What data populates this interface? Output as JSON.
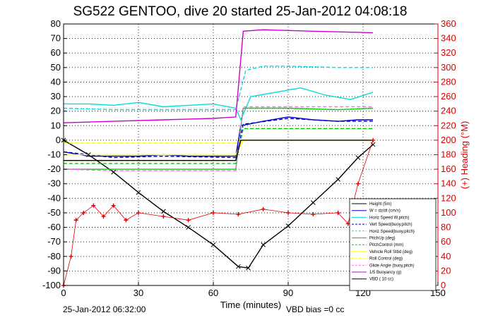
{
  "chart_data": {
    "type": "line",
    "title": "SG522 GENTOO, dive 20 started 25-Jan-2012 04:08:18",
    "xlabel": "Time (minutes)",
    "ylabel": "",
    "y2label": "(+) Heading (°M)",
    "xlim": [
      0,
      150
    ],
    "ylim": [
      -100,
      80
    ],
    "y2lim": [
      0,
      360
    ],
    "grid": true,
    "legend_position": "bottom-right",
    "x_ticks": [
      "0",
      "30",
      "60",
      "90",
      "120",
      "150"
    ],
    "y_ticks": [
      "80",
      "70",
      "60",
      "50",
      "40",
      "30",
      "20",
      "10",
      "0",
      "-10",
      "-20",
      "-30",
      "-40",
      "-50",
      "-60",
      "-70",
      "-80",
      "-90",
      "-100"
    ],
    "y2_ticks": [
      "360",
      "340",
      "320",
      "300",
      "280",
      "260",
      "240",
      "220",
      "200",
      "180",
      "160",
      "140",
      "120",
      "100",
      "80",
      "60",
      "40",
      "20",
      "0"
    ],
    "colors": {
      "axis_left": "#000000",
      "axis_right": "#dd0000"
    },
    "series": [
      {
        "name": "Height (5m)",
        "color": "#000000",
        "style": "solid",
        "points": [
          [
            0,
            0
          ],
          [
            10,
            -10
          ],
          [
            20,
            -22
          ],
          [
            30,
            -36
          ],
          [
            40,
            -49
          ],
          [
            50,
            -60
          ],
          [
            60,
            -72
          ],
          [
            70,
            -87
          ],
          [
            74,
            -88
          ],
          [
            80,
            -72
          ],
          [
            90,
            -59
          ],
          [
            100,
            -43
          ],
          [
            110,
            -27
          ],
          [
            118,
            -12
          ],
          [
            124,
            -3
          ]
        ]
      },
      {
        "name": "W = dz/dt (cm/s)",
        "color": "#0000cc",
        "style": "solid",
        "points": [
          [
            0,
            -8
          ],
          [
            10,
            -11
          ],
          [
            20,
            -11
          ],
          [
            30,
            -11
          ],
          [
            40,
            -10
          ],
          [
            50,
            -11
          ],
          [
            60,
            -11
          ],
          [
            69,
            -11
          ],
          [
            71,
            10
          ],
          [
            80,
            13
          ],
          [
            90,
            16
          ],
          [
            100,
            14
          ],
          [
            110,
            13
          ],
          [
            118,
            14
          ],
          [
            124,
            14
          ]
        ]
      },
      {
        "name": "Horiz Speed W,pitch)",
        "color": "#00dddd",
        "style": "solid",
        "points": [
          [
            0,
            25
          ],
          [
            10,
            25
          ],
          [
            20,
            24
          ],
          [
            30,
            26
          ],
          [
            40,
            23
          ],
          [
            50,
            24
          ],
          [
            60,
            25
          ],
          [
            69,
            22
          ],
          [
            71,
            14
          ],
          [
            75,
            30
          ],
          [
            85,
            33
          ],
          [
            95,
            36
          ],
          [
            105,
            31
          ],
          [
            115,
            28
          ],
          [
            124,
            33
          ]
        ]
      },
      {
        "name": "Vert Speed(buoy,pitch)",
        "color": "#0000cc",
        "style": "dashed",
        "points": [
          [
            0,
            -8
          ],
          [
            20,
            -12
          ],
          [
            40,
            -11
          ],
          [
            69,
            -12
          ],
          [
            72,
            11
          ],
          [
            90,
            15
          ],
          [
            110,
            13
          ],
          [
            124,
            13
          ]
        ]
      },
      {
        "name": "Horiz Speed(buoy,pitch)",
        "color": "#00dddd",
        "style": "dashed",
        "points": [
          [
            0,
            22
          ],
          [
            20,
            21
          ],
          [
            40,
            21
          ],
          [
            69,
            21
          ],
          [
            73,
            48
          ],
          [
            80,
            51
          ],
          [
            90,
            51
          ],
          [
            110,
            50
          ],
          [
            124,
            50
          ]
        ]
      },
      {
        "name": "PitchUp (deg)",
        "color": "#00cc00",
        "style": "solid",
        "points": [
          [
            0,
            -20
          ],
          [
            20,
            -20
          ],
          [
            40,
            -20
          ],
          [
            69,
            -20
          ],
          [
            72,
            22
          ],
          [
            90,
            22
          ],
          [
            110,
            21
          ],
          [
            124,
            22
          ]
        ]
      },
      {
        "name": "PitchControl (mm)",
        "color": "#00cc00",
        "style": "dashed",
        "points": [
          [
            0,
            -16
          ],
          [
            20,
            -16
          ],
          [
            40,
            -16
          ],
          [
            69,
            -16
          ],
          [
            72,
            8
          ],
          [
            90,
            8
          ],
          [
            110,
            8
          ],
          [
            124,
            8
          ]
        ]
      },
      {
        "name": "Vehicle Roll Stbd (deg)",
        "color": "#ffff00",
        "style": "solid",
        "points": [
          [
            0,
            -10
          ],
          [
            30,
            -10
          ],
          [
            69,
            -10
          ],
          [
            72,
            0
          ],
          [
            100,
            0
          ],
          [
            124,
            0
          ]
        ]
      },
      {
        "name": "Roll Control (deg)",
        "color": "#ffff00",
        "style": "dashed",
        "points": [
          [
            0,
            -2
          ],
          [
            69,
            -2
          ],
          [
            72,
            0
          ],
          [
            124,
            0
          ]
        ]
      },
      {
        "name": "Glide Angle (buoy,pitch)",
        "color": "#ff66ff",
        "style": "dashed",
        "points": [
          [
            0,
            -20
          ],
          [
            20,
            -21
          ],
          [
            40,
            -21
          ],
          [
            69,
            -21
          ],
          [
            72,
            23
          ],
          [
            90,
            23
          ],
          [
            110,
            23
          ],
          [
            124,
            23
          ]
        ]
      },
      {
        "name": "1/5 Buoyancy (g)",
        "color": "#cc00cc",
        "style": "solid",
        "points": [
          [
            0,
            12
          ],
          [
            20,
            13
          ],
          [
            40,
            14
          ],
          [
            60,
            15
          ],
          [
            69,
            16
          ],
          [
            72,
            75
          ],
          [
            80,
            76
          ],
          [
            100,
            75
          ],
          [
            124,
            74
          ]
        ]
      },
      {
        "name": "VBD ( 10 cc)",
        "color": "#000000",
        "style": "solid",
        "points": [
          [
            0,
            -14
          ],
          [
            20,
            -14
          ],
          [
            40,
            -14
          ],
          [
            69,
            -14
          ],
          [
            71,
            0
          ],
          [
            124,
            0
          ]
        ]
      },
      {
        "name": "Heading",
        "axis": "right",
        "color": "#dd0000",
        "style": "markers",
        "points": [
          [
            0,
            0
          ],
          [
            3,
            40
          ],
          [
            5,
            90
          ],
          [
            8,
            100
          ],
          [
            12,
            110
          ],
          [
            16,
            95
          ],
          [
            20,
            110
          ],
          [
            25,
            90
          ],
          [
            30,
            100
          ],
          [
            40,
            95
          ],
          [
            50,
            90
          ],
          [
            60,
            100
          ],
          [
            70,
            98
          ],
          [
            80,
            105
          ],
          [
            90,
            100
          ],
          [
            100,
            98
          ],
          [
            110,
            100
          ],
          [
            114,
            85
          ],
          [
            118,
            140
          ],
          [
            124,
            200
          ]
        ]
      }
    ]
  },
  "footer": {
    "timestamp": "25-Jan-2012 06:32:00",
    "vbd_bias": "VBD bias =0 cc"
  }
}
